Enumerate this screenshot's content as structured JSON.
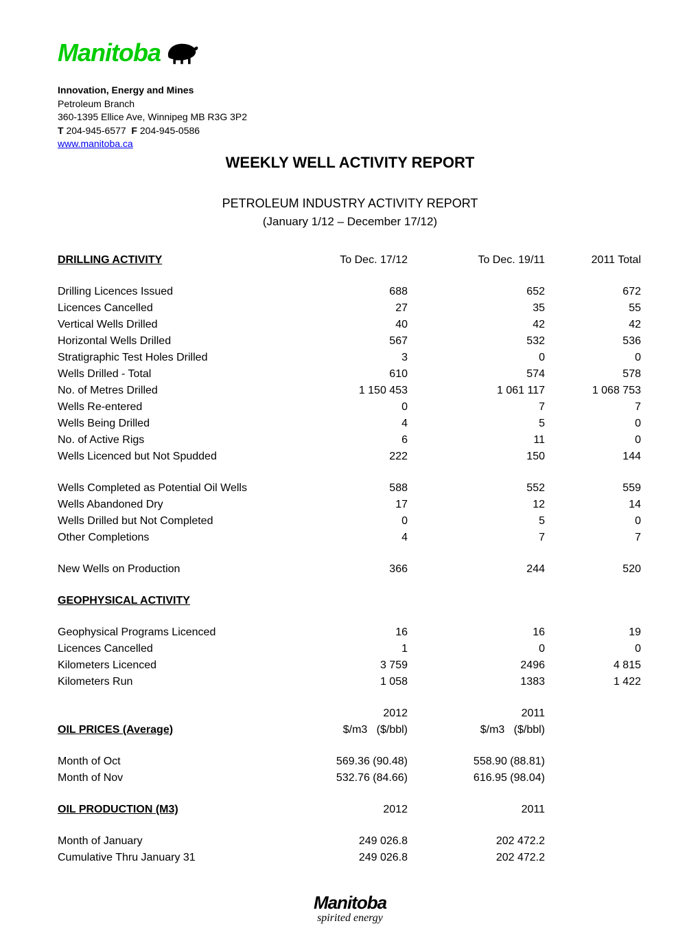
{
  "logo": {
    "text": "Manitoba",
    "color": "#00cc00"
  },
  "header": {
    "department": "Innovation, Energy and Mines",
    "branch": "Petroleum Branch",
    "address": "360-1395 Ellice Ave, Winnipeg MB   R3G 3P2",
    "phone_label_t": "T",
    "phone_t": "204-945-6577",
    "phone_label_f": "F",
    "phone_f": "204-945-0586",
    "link": "www.manitoba.ca"
  },
  "title": "WEEKLY WELL ACTIVITY REPORT",
  "subtitle": "PETROLEUM INDUSTRY ACTIVITY REPORT",
  "date_range": "(January 1/12 – December 17/12)",
  "columns": {
    "c2": "To Dec. 17/12",
    "c3": "To Dec. 19/11",
    "c4": "2011 Total"
  },
  "drilling": {
    "header": "DRILLING ACTIVITY",
    "rows": [
      {
        "label": "Drilling Licences Issued",
        "v1": "688",
        "v2": "652",
        "v3": "672"
      },
      {
        "label": "Licences Cancelled",
        "v1": "27",
        "v2": "35",
        "v3": "55"
      },
      {
        "label": "Vertical Wells Drilled",
        "v1": "40",
        "v2": "42",
        "v3": "42"
      },
      {
        "label": "Horizontal Wells Drilled",
        "v1": "567",
        "v2": "532",
        "v3": "536"
      },
      {
        "label": "Stratigraphic Test Holes Drilled",
        "v1": "3",
        "v2": "0",
        "v3": "0"
      },
      {
        "label": "Wells Drilled - Total",
        "v1": "610",
        "v2": "574",
        "v3": "578"
      },
      {
        "label": "No. of Metres Drilled",
        "v1": "1 150 453",
        "v2": "1 061 117",
        "v3": "1 068 753"
      },
      {
        "label": "Wells Re-entered",
        "v1": "0",
        "v2": "7",
        "v3": "7"
      },
      {
        "label": "Wells Being Drilled",
        "v1": "4",
        "v2": "5",
        "v3": "0"
      },
      {
        "label": "No. of Active Rigs",
        "v1": "6",
        "v2": "11",
        "v3": "0"
      },
      {
        "label": "Wells Licenced but Not Spudded",
        "v1": "222",
        "v2": "150",
        "v3": "144"
      }
    ],
    "rows2": [
      {
        "label": "Wells Completed as Potential Oil Wells",
        "v1": "588",
        "v2": "552",
        "v3": "559"
      },
      {
        "label": "Wells Abandoned Dry",
        "v1": "17",
        "v2": "12",
        "v3": "14"
      },
      {
        "label": "Wells Drilled but Not Completed",
        "v1": "0",
        "v2": "5",
        "v3": "0"
      },
      {
        "label": "Other Completions",
        "v1": "4",
        "v2": "7",
        "v3": "7"
      }
    ],
    "rows3": [
      {
        "label": "New Wells on Production",
        "v1": "366",
        "v2": "244",
        "v3": "520"
      }
    ]
  },
  "geophysical": {
    "header": "GEOPHYSICAL ACTIVITY",
    "rows": [
      {
        "label": "Geophysical Programs Licenced",
        "v1": "16",
        "v2": "16",
        "v3": "19"
      },
      {
        "label": "Licences Cancelled",
        "v1": "1",
        "v2": "0",
        "v3": "0"
      },
      {
        "label": "Kilometers Licenced",
        "v1": "3 759",
        "v2": "2496",
        "v3": "4 815"
      },
      {
        "label": "Kilometers Run",
        "v1": "1 058",
        "v2": "1383",
        "v3": "1 422"
      }
    ]
  },
  "oil_prices": {
    "header": "OIL PRICES (Average)",
    "year1": "2012",
    "year2": "2011",
    "unit1": "$/m3",
    "unit2": "($/bbl)",
    "rows": [
      {
        "label": "Month of Oct",
        "v1": "569.36 (90.48)",
        "v2": "558.90 (88.81)"
      },
      {
        "label": "Month of Nov",
        "v1": "532.76 (84.66)",
        "v2": "616.95 (98.04)"
      }
    ]
  },
  "oil_production": {
    "header": "OIL PRODUCTION (M3)",
    "year1": "2012",
    "year2": "2011",
    "rows": [
      {
        "label": "Month of January",
        "v1": "249 026.8",
        "v2": "202 472.2"
      },
      {
        "label": "Cumulative Thru January 31",
        "v1": "249 026.8",
        "v2": "202 472.2"
      }
    ]
  },
  "footer": {
    "text": "Manitoba",
    "tagline": "spirited energy"
  }
}
